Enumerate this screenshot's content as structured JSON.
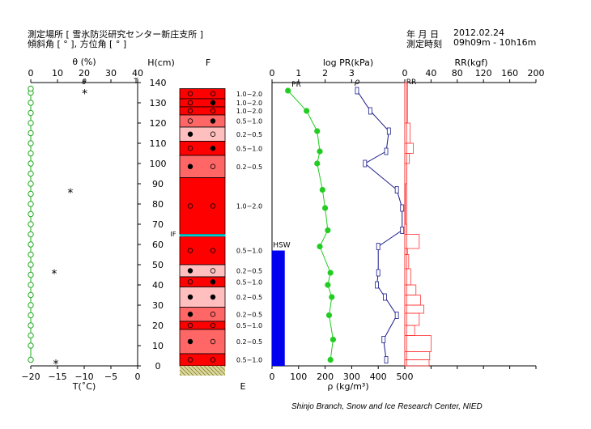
{
  "header": {
    "site": "測定場所 [ 雪氷防災研究センター新庄支所 ]",
    "slope": "傾斜角 [ ° ], 方位角 [ ° ]",
    "date_label": "年 月 日",
    "date": "2012.02.24",
    "time_label": "測定時刻",
    "time": "09h09m - 10h16m"
  },
  "credit": "Shinjo Branch, Snow and Ice Research Center, NIED",
  "colors": {
    "theta": "#22aa22",
    "pr": "#22cc22",
    "rho": "#1a1a8c",
    "rr": "#ff3333",
    "hsw": "#0000ee",
    "layer_red": "#ff0000",
    "layer_salmon": "#ff6666",
    "layer_pink": "#ffbfbf",
    "ice": "#00cccc"
  },
  "chart_data": {
    "type": "line",
    "y_axis": {
      "label": "H(cm)",
      "range": [
        0,
        140
      ],
      "ticks": [
        "0",
        "10",
        "20",
        "30",
        "40",
        "50",
        "60",
        "70",
        "80",
        "90",
        "100",
        "110",
        "120",
        "130",
        "140"
      ]
    },
    "theta_axis": {
      "label": "θ (%)",
      "range": [
        0,
        40
      ],
      "ticks": [
        "0",
        "10",
        "20",
        "30",
        "40"
      ],
      "marker_label": "θ",
      "marker_label_2": "T"
    },
    "temp_axis": {
      "label": "T(˚C)",
      "range": [
        -20,
        0
      ],
      "ticks": [
        "−20",
        "−15",
        "−10",
        "−5",
        "0"
      ]
    },
    "f_label": "F",
    "e_label": "E",
    "if_label": "IF",
    "pr_axis": {
      "label": "log PR(kPa)",
      "range": [
        0,
        5
      ],
      "ticks": [
        "0",
        "1",
        "2",
        "3"
      ],
      "series_label": "PR",
      "rho_label": "ρ"
    },
    "rho_axis": {
      "label": "ρ (kg/m³)",
      "range": [
        0,
        500
      ],
      "ticks": [
        "0",
        "100",
        "200",
        "300",
        "400",
        "500"
      ]
    },
    "rr_axis": {
      "label": "RR(kgf)",
      "range": [
        0,
        200
      ],
      "ticks": [
        "0",
        "40",
        "80",
        "120",
        "160",
        "200"
      ],
      "series_label": "RR"
    },
    "hsw_label": "HSW",
    "series": [
      {
        "name": "θ",
        "points": [
          [
            0,
            3
          ],
          [
            0,
            10
          ],
          [
            0,
            15
          ],
          [
            0,
            20
          ],
          [
            0,
            25
          ],
          [
            0,
            30
          ],
          [
            0,
            35
          ],
          [
            0,
            40
          ],
          [
            0,
            45
          ],
          [
            0,
            50
          ],
          [
            0,
            55
          ],
          [
            0,
            60
          ],
          [
            0,
            65
          ],
          [
            0,
            70
          ],
          [
            0,
            75
          ],
          [
            0,
            80
          ],
          [
            0,
            85
          ],
          [
            0,
            90
          ],
          [
            0,
            95
          ],
          [
            0,
            100
          ],
          [
            0,
            105
          ],
          [
            0,
            110
          ],
          [
            0,
            115
          ],
          [
            0,
            120
          ],
          [
            0,
            125
          ],
          [
            0,
            130
          ],
          [
            0,
            135
          ],
          [
            0,
            137
          ]
        ]
      },
      {
        "name": "T",
        "points": [
          [
            -15.3,
            1.5
          ],
          [
            -15.6,
            46
          ],
          [
            -12.6,
            86
          ],
          [
            -9.9,
            135
          ]
        ]
      },
      {
        "name": "PR",
        "points": [
          [
            0.6,
            136
          ],
          [
            1.3,
            126
          ],
          [
            1.7,
            116
          ],
          [
            1.8,
            106
          ],
          [
            1.7,
            100
          ],
          [
            1.9,
            87
          ],
          [
            2.0,
            78
          ],
          [
            2.1,
            67
          ],
          [
            1.8,
            59
          ],
          [
            2.2,
            46
          ],
          [
            2.1,
            40
          ],
          [
            2.25,
            34
          ],
          [
            2.15,
            25
          ],
          [
            2.3,
            13
          ],
          [
            2.2,
            3
          ]
        ]
      },
      {
        "name": "ρ",
        "points": [
          [
            320,
            136
          ],
          [
            370,
            126
          ],
          [
            440,
            116
          ],
          [
            430,
            106
          ],
          [
            350,
            100
          ],
          [
            470,
            87
          ],
          [
            490,
            78
          ],
          [
            490,
            67
          ],
          [
            400,
            59
          ],
          [
            400,
            46
          ],
          [
            395,
            40
          ],
          [
            425,
            34
          ],
          [
            470,
            25
          ],
          [
            420,
            13
          ],
          [
            430,
            3
          ]
        ]
      },
      {
        "name": "RR",
        "bins": [
          [
            0,
            140,
            3
          ],
          [
            120,
            140,
            4
          ],
          [
            110,
            120,
            8
          ],
          [
            105,
            110,
            13
          ],
          [
            100,
            105,
            7
          ],
          [
            90,
            100,
            3
          ],
          [
            70,
            90,
            1
          ],
          [
            65,
            70,
            3
          ],
          [
            58,
            65,
            22
          ],
          [
            55,
            58,
            4
          ],
          [
            48,
            55,
            6
          ],
          [
            40,
            48,
            9
          ],
          [
            35,
            40,
            17
          ],
          [
            30,
            35,
            24
          ],
          [
            26,
            30,
            29
          ],
          [
            20,
            26,
            22
          ],
          [
            15,
            20,
            15
          ],
          [
            7,
            15,
            40
          ],
          [
            3,
            7,
            38
          ],
          [
            0,
            3,
            37
          ]
        ]
      }
    ],
    "hsw": {
      "density_value": 48,
      "height_range": [
        0,
        57
      ]
    },
    "layers": [
      {
        "bottom": 132,
        "top": 137,
        "fill": "red",
        "grains": [
          "open",
          "open"
        ],
        "size": "1.0−2.0"
      },
      {
        "bottom": 128,
        "top": 132,
        "fill": "red",
        "grains": [
          "open",
          "filled"
        ],
        "size": "1.0−2.0"
      },
      {
        "bottom": 124,
        "top": 128,
        "fill": "red",
        "grains": [
          "open",
          "open"
        ],
        "size": "1.0−2.0"
      },
      {
        "bottom": 118,
        "top": 124,
        "fill": "salmon",
        "grains": [
          "open",
          "filled"
        ],
        "size": "0.5−1.0"
      },
      {
        "bottom": 111,
        "top": 118,
        "fill": "pink",
        "grains": [
          "filled",
          "open"
        ],
        "size": "0.2−0.5"
      },
      {
        "bottom": 104,
        "top": 111,
        "fill": "red",
        "grains": [
          "open",
          "filled"
        ],
        "size": "0.5−1.0"
      },
      {
        "bottom": 93,
        "top": 104,
        "fill": "salmon",
        "grains": [
          "filled",
          "open"
        ],
        "size": "0.2−0.5"
      },
      {
        "bottom": 65,
        "top": 93,
        "fill": "red",
        "grains": [
          "open",
          "open"
        ],
        "size": "1.0−2.0"
      },
      {
        "bottom": 50,
        "top": 64,
        "fill": "red",
        "grains": [
          "open",
          "open"
        ],
        "size": "0.5−1.0"
      },
      {
        "bottom": 44,
        "top": 50,
        "fill": "pink",
        "grains": [
          "filled",
          "open"
        ],
        "size": "0.2−0.5"
      },
      {
        "bottom": 39,
        "top": 44,
        "fill": "red",
        "grains": [
          "open",
          "filled"
        ],
        "size": "0.5−1.0"
      },
      {
        "bottom": 29,
        "top": 39,
        "fill": "pink",
        "grains": [
          "filled",
          "filled"
        ],
        "size": "0.2−0.5"
      },
      {
        "bottom": 22,
        "top": 29,
        "fill": "salmon",
        "grains": [
          "filled",
          "open"
        ],
        "size": "0.2−0.5"
      },
      {
        "bottom": 18,
        "top": 22,
        "fill": "red",
        "grains": [
          "open",
          "open"
        ],
        "size": "0.5−1.0"
      },
      {
        "bottom": 6,
        "top": 18,
        "fill": "salmon",
        "grains": [
          "filled",
          "open"
        ],
        "size": "0.2−0.5"
      },
      {
        "bottom": 0,
        "top": 6,
        "fill": "red",
        "grains": [
          "open",
          "open"
        ],
        "size": "0.5−1.0"
      }
    ],
    "ice_layer_height": 64.5,
    "grid": false
  }
}
